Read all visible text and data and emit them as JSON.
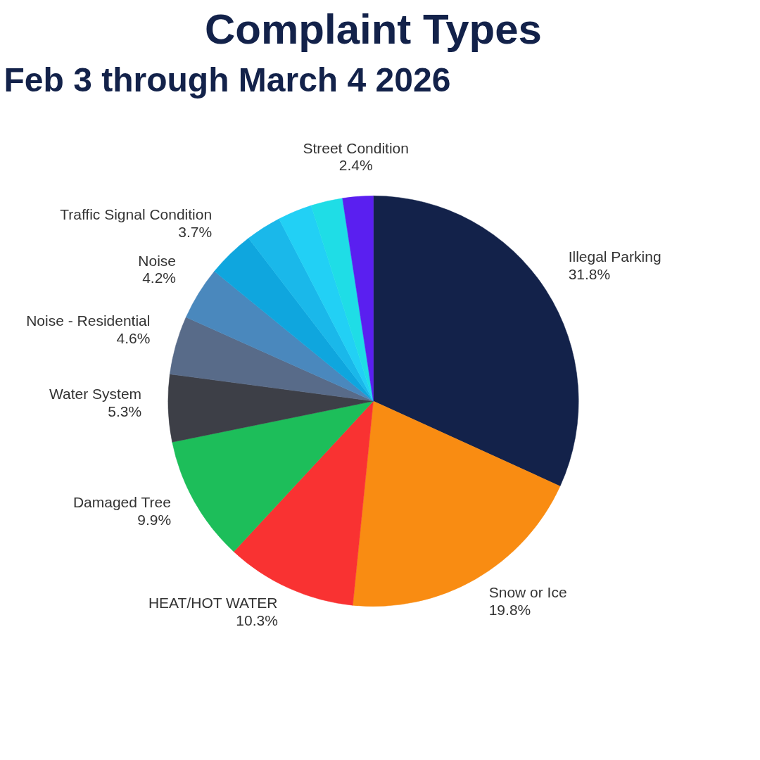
{
  "chart_data": {
    "type": "pie",
    "title": "Complaint Types",
    "subtitle": "Feb 3 through March 4  2026",
    "categories": [
      "Illegal Parking",
      "Snow or Ice",
      "HEAT/HOT WATER",
      "Damaged Tree",
      "Water System",
      "Noise - Residential",
      "Noise",
      "Traffic Signal Condition",
      null,
      null,
      null,
      "Street Condition"
    ],
    "values": [
      31.8,
      19.8,
      10.3,
      9.9,
      5.3,
      4.6,
      4.2,
      3.7,
      2.8,
      2.7,
      2.5,
      2.4
    ],
    "value_labels": [
      "31.8%",
      "19.8%",
      "10.3%",
      "9.9%",
      "5.3%",
      "4.6%",
      "4.2%",
      "3.7%",
      null,
      null,
      null,
      "2.4%"
    ],
    "colors": [
      "#13224a",
      "#f98c12",
      "#f93232",
      "#1dbe5a",
      "#3d3f47",
      "#586b89",
      "#4a88bd",
      "#0fa6de",
      "#1ab8ea",
      "#22d0f5",
      "#1fdde6",
      "#5a1ff0"
    ]
  }
}
